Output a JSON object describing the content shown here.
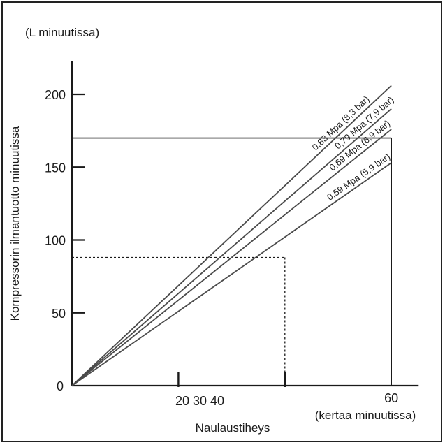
{
  "chart_data": {
    "type": "line",
    "unit_label": "(L minuutissa)",
    "ylabel": "Kompressorin ilmantuotto minuutissa",
    "xlabel": "Naulaustiheys",
    "x_unit_label": "(kertaa minuutissa)",
    "y_ticks": [
      "0",
      "50",
      "100",
      "150",
      "200"
    ],
    "y_tick_values": [
      0,
      50,
      100,
      150,
      200
    ],
    "x_ticks": [
      "20 30 40",
      "60"
    ],
    "x_tick_values": [
      20,
      60
    ],
    "x_tick_marks": [
      20,
      40
    ],
    "xlim": [
      0,
      65
    ],
    "ylim": [
      0,
      225
    ],
    "series": [
      {
        "name": "0,83 Mpa (8,3 bar)",
        "x": [
          0,
          60
        ],
        "y": [
          0,
          206
        ]
      },
      {
        "name": "0,79 Mpa (7,9 bar)",
        "x": [
          0,
          60
        ],
        "y": [
          0,
          190
        ]
      },
      {
        "name": "0,69 Mpa (6,9 bar)",
        "x": [
          0,
          60
        ],
        "y": [
          0,
          176
        ]
      },
      {
        "name": "0,59 Mpa (5,9 bar)",
        "x": [
          0,
          60
        ],
        "y": [
          0,
          153
        ]
      }
    ],
    "reference_box": {
      "x": 60,
      "y": 170
    },
    "dashed_guide": {
      "x": 40,
      "y": 88
    },
    "grid": false,
    "colors": {
      "line": "#4a4a4a",
      "axis": "#1a1a1a",
      "text": "#1a1a1a"
    }
  }
}
